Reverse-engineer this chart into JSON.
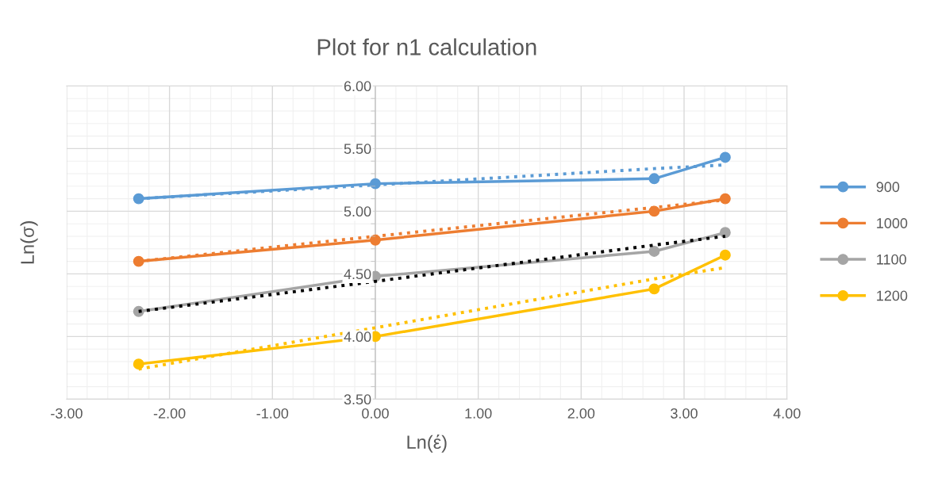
{
  "chart_data": {
    "type": "line",
    "title": "Plot for n1 calculation",
    "xlabel": "Ln(έ)",
    "ylabel": "Ln(σ)",
    "x": [
      -2.3,
      0.0,
      2.71,
      3.4
    ],
    "series": [
      {
        "name": "900",
        "color": "#5b9bd5",
        "values": [
          5.1,
          5.22,
          5.26,
          5.43
        ]
      },
      {
        "name": "1000",
        "color": "#ed7d31",
        "values": [
          4.6,
          4.77,
          5.0,
          5.1
        ]
      },
      {
        "name": "1100",
        "color": "#a5a5a5",
        "values": [
          4.2,
          4.48,
          4.68,
          4.83
        ]
      },
      {
        "name": "1200",
        "color": "#ffc000",
        "values": [
          3.78,
          4.0,
          4.38,
          4.65
        ]
      },
      {
        "type": "line",
        "color": "#5b9bd5",
        "values": [
          5.1,
          5.21,
          5.34,
          5.37
        ],
        "marker": "none",
        "line_style": "dotted"
      },
      {
        "type": "line",
        "color": "#ed7d31",
        "values": [
          4.6,
          4.8,
          5.03,
          5.09
        ],
        "marker": "none",
        "line_style": "dotted"
      },
      {
        "type": "line",
        "color": "#000000",
        "values": [
          4.2,
          4.44,
          4.73,
          4.8
        ],
        "marker": "none",
        "line_style": "dotted"
      },
      {
        "type": "line",
        "color": "#ffc000",
        "values": [
          3.74,
          4.07,
          4.46,
          4.55
        ],
        "marker": "none",
        "line_style": "dotted"
      }
    ],
    "xlim": [
      -3.0,
      4.0
    ],
    "xticks": [
      {
        "value": -3,
        "label": "-3.00"
      },
      {
        "value": -2,
        "label": "-2.00"
      },
      {
        "value": -1,
        "label": "-1.00"
      },
      {
        "value": 0,
        "label": "0.00"
      },
      {
        "value": 1,
        "label": "1.00"
      },
      {
        "value": 2,
        "label": "2.00"
      },
      {
        "value": 3,
        "label": "3.00"
      },
      {
        "value": 4,
        "label": "4.00"
      }
    ],
    "ylim": [
      3.5,
      6.0
    ],
    "yticks": [
      {
        "value": 3.5,
        "label": "3.50"
      },
      {
        "value": 4.0,
        "label": "4.00"
      },
      {
        "value": 4.5,
        "label": "4.50"
      },
      {
        "value": 5.0,
        "label": "5.00"
      },
      {
        "value": 5.5,
        "label": "5.50"
      },
      {
        "value": 6.0,
        "label": "6.00"
      }
    ],
    "grid": true,
    "legend": "right",
    "marker": "circle",
    "line_style": "solid"
  }
}
